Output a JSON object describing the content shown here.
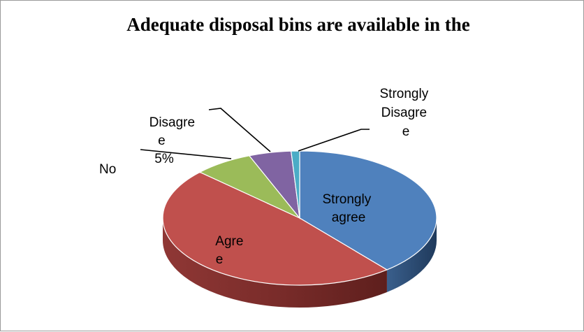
{
  "chart_data": {
    "type": "pie",
    "title": "Adequate disposal bins are available in the",
    "categories": [
      "Strongly agree",
      "Agree",
      "No",
      "Disagree",
      "Strongly Disagree"
    ],
    "values": [
      39,
      48,
      7,
      5,
      1
    ],
    "colors": [
      "#4f81bd",
      "#c0504d",
      "#9bbb59",
      "#8064a2",
      "#4bacc6"
    ],
    "labels": {
      "strongly_agree": [
        "Strongly",
        "agree"
      ],
      "agree": [
        "Agre",
        "e"
      ],
      "no": [
        "No"
      ],
      "disagree": [
        "Disagre",
        "e",
        "5%"
      ],
      "strongly_disagree": [
        "Strongly",
        "Disagre",
        "e"
      ]
    },
    "style": "3d"
  }
}
